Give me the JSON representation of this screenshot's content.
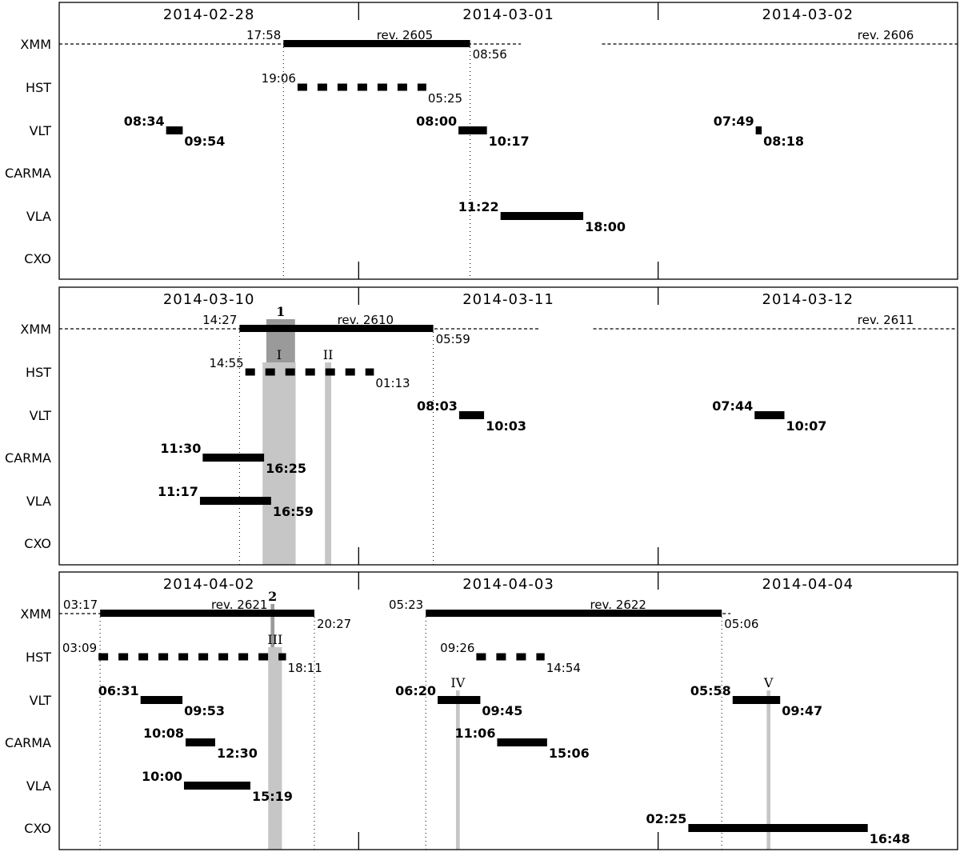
{
  "chart_data": {
    "type": "timeline",
    "instruments": [
      "XMM",
      "HST",
      "VLT",
      "CARMA",
      "VLA",
      "CXO"
    ],
    "panels": [
      {
        "days": [
          "2014-02-28",
          "2014-03-01",
          "2014-03-02"
        ],
        "x_range_hours": [
          0,
          72
        ],
        "revolutions": [
          {
            "label": "rev. 2605",
            "dashed": [
              -6.7,
              37
            ],
            "bold": {
              "start": 17.97,
              "end": 32.93,
              "start_label": "17:58",
              "end_label": "08:56"
            }
          },
          {
            "label": "rev. 2606",
            "dashed": [
              43.5,
              72
            ],
            "bold": null
          }
        ],
        "observations": [
          {
            "inst": "HST",
            "start": 19.1,
            "end": 29.42,
            "dashed": true,
            "start_label": "19:06",
            "end_label": "05:25",
            "style": "normal"
          },
          {
            "inst": "VLT",
            "start": 8.57,
            "end": 9.9,
            "start_label": "08:34",
            "end_label": "09:54",
            "style": "bold"
          },
          {
            "inst": "VLT",
            "start": 32.0,
            "end": 34.28,
            "start_label": "08:00",
            "end_label": "10:17",
            "style": "bold"
          },
          {
            "inst": "VLT",
            "start": 55.82,
            "end": 56.3,
            "start_label": "07:49",
            "end_label": "08:18",
            "style": "bold"
          },
          {
            "inst": "VLA",
            "start": 35.37,
            "end": 42.0,
            "start_label": "11:22",
            "end_label": "18:00",
            "style": "bold"
          }
        ],
        "vlines": [
          17.97,
          32.93
        ],
        "highlights": [],
        "markers": []
      },
      {
        "days": [
          "2014-03-10",
          "2014-03-11",
          "2014-03-12"
        ],
        "x_range_hours": [
          0,
          72
        ],
        "revolutions": [
          {
            "label": "rev. 2610",
            "dashed": [
              -7.3,
              38.5
            ],
            "bold": {
              "start": 14.45,
              "end": 29.98,
              "start_label": "14:27",
              "end_label": "05:59"
            }
          },
          {
            "label": "rev. 2611",
            "dashed": [
              42.8,
              72
            ],
            "bold": null
          }
        ],
        "observations": [
          {
            "inst": "HST",
            "start": 14.92,
            "end": 25.22,
            "dashed": true,
            "start_label": "14:55",
            "end_label": "01:13",
            "style": "normal"
          },
          {
            "inst": "VLT",
            "start": 32.05,
            "end": 34.05,
            "start_label": "08:03",
            "end_label": "10:03",
            "style": "bold"
          },
          {
            "inst": "VLT",
            "start": 55.73,
            "end": 58.12,
            "start_label": "07:44",
            "end_label": "10:07",
            "style": "bold"
          },
          {
            "inst": "CARMA",
            "start": 11.5,
            "end": 16.42,
            "start_label": "11:30",
            "end_label": "16:25",
            "style": "bold"
          },
          {
            "inst": "VLA",
            "start": 11.28,
            "end": 16.98,
            "start_label": "11:17",
            "end_label": "16:59",
            "style": "bold"
          }
        ],
        "vlines": [
          14.45,
          29.98
        ],
        "highlights": [
          {
            "label": "1",
            "start": 16.6,
            "end": 18.9,
            "from": "XMM",
            "to": "HST",
            "shade": "dark"
          },
          {
            "label": "I",
            "start": 16.3,
            "end": 18.95,
            "from": "HST",
            "to": "bottom",
            "shade": "light"
          },
          {
            "label": "II",
            "start": 21.3,
            "end": 21.8,
            "from": "HST",
            "to": "bottom",
            "shade": "light"
          }
        ],
        "markers": []
      },
      {
        "days": [
          "2014-04-02",
          "2014-04-03",
          "2014-04-04"
        ],
        "x_range_hours": [
          0,
          72
        ],
        "revolutions": [
          {
            "label": "rev. 2621",
            "dashed": [
              0,
              20.45
            ],
            "bold": {
              "start": 3.28,
              "end": 20.45,
              "start_label": "03:17",
              "end_label": "20:27"
            }
          },
          {
            "label": "rev. 2622",
            "dashed": [
              29.38,
              53.8
            ],
            "bold": {
              "start": 29.38,
              "end": 53.1,
              "start_label": "05:23",
              "end_label": "05:06"
            }
          }
        ],
        "observations": [
          {
            "inst": "HST",
            "start": 3.15,
            "end": 18.18,
            "dashed": true,
            "start_label": "03:09",
            "end_label": "18:11",
            "style": "normal"
          },
          {
            "inst": "HST",
            "start": 33.43,
            "end": 38.9,
            "dashed": true,
            "start_label": "09:26",
            "end_label": "14:54",
            "style": "normal"
          },
          {
            "inst": "VLT",
            "start": 6.52,
            "end": 9.88,
            "start_label": "06:31",
            "end_label": "09:53",
            "style": "bold"
          },
          {
            "inst": "VLT",
            "start": 30.33,
            "end": 33.75,
            "start_label": "06:20",
            "end_label": "09:45",
            "style": "bold"
          },
          {
            "inst": "VLT",
            "start": 53.97,
            "end": 57.78,
            "start_label": "05:58",
            "end_label": "09:47",
            "style": "bold"
          },
          {
            "inst": "CARMA",
            "start": 10.13,
            "end": 12.5,
            "start_label": "10:08",
            "end_label": "12:30",
            "style": "bold"
          },
          {
            "inst": "CARMA",
            "start": 35.1,
            "end": 39.1,
            "start_label": "11:06",
            "end_label": "15:06",
            "style": "bold"
          },
          {
            "inst": "VLA",
            "start": 10.0,
            "end": 15.32,
            "start_label": "10:00",
            "end_label": "15:19",
            "style": "bold"
          },
          {
            "inst": "CXO",
            "start": 50.42,
            "end": 64.8,
            "start_label": "02:25",
            "end_label": "16:48",
            "style": "bold"
          }
        ],
        "vlines": [
          3.28,
          20.45,
          29.38,
          53.1
        ],
        "highlights": [
          {
            "label": "2",
            "start": 16.95,
            "end": 17.25,
            "from": "XMM",
            "to": "HST",
            "shade": "dark"
          },
          {
            "label": "III",
            "start": 16.75,
            "end": 17.85,
            "from": "HST",
            "to": "bottom",
            "shade": "light"
          },
          {
            "label": "IV",
            "start": 31.8,
            "end": 32.1,
            "from": "VLT",
            "to": "bottom",
            "shade": "light"
          },
          {
            "label": "V",
            "start": 56.7,
            "end": 57.0,
            "from": "VLT",
            "to": "bottom",
            "shade": "light"
          }
        ],
        "markers": []
      }
    ]
  }
}
